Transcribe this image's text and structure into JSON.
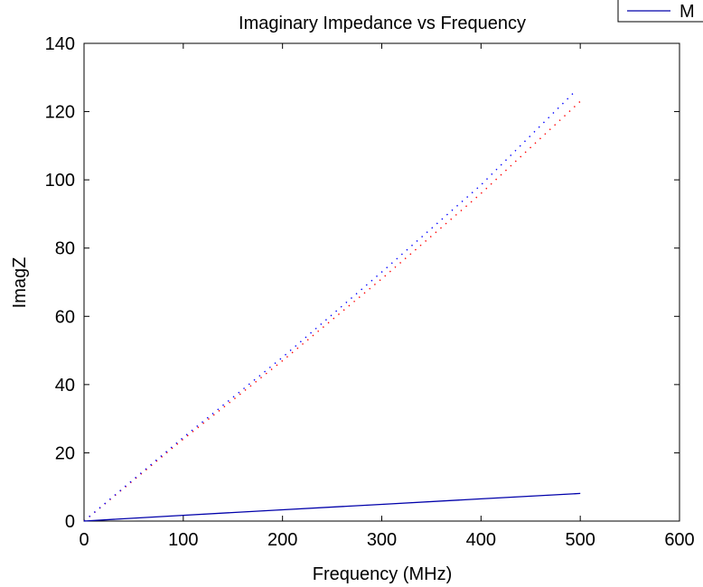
{
  "chart_data": {
    "type": "line",
    "title": "Imaginary Impedance vs Frequency",
    "xlabel": "Frequency (MHz)",
    "ylabel": "ImagZ",
    "xlim": [
      0,
      600
    ],
    "ylim": [
      0,
      140
    ],
    "xticks": [
      "0",
      "100",
      "200",
      "300",
      "400",
      "500",
      "600"
    ],
    "yticks": [
      "0",
      "20",
      "40",
      "60",
      "80",
      "100",
      "120",
      "140"
    ],
    "grid": false,
    "legend": {
      "position": "top-right",
      "visible_text": "M"
    },
    "series": [
      {
        "color": "#ff0000",
        "style": "dotted",
        "x": [
          0,
          100,
          200,
          300,
          400,
          500
        ],
        "y": [
          0,
          24,
          47,
          71,
          96,
          123
        ]
      },
      {
        "color": "#0000ff",
        "style": "dotted",
        "x": [
          0,
          100,
          200,
          300,
          400,
          495
        ],
        "y": [
          0,
          24.5,
          48,
          73,
          98.5,
          126
        ]
      },
      {
        "color": "#0000aa",
        "style": "solid",
        "x": [
          0,
          100,
          200,
          300,
          400,
          500
        ],
        "y": [
          0,
          1.7,
          3.3,
          4.9,
          6.5,
          8.1
        ]
      }
    ]
  }
}
